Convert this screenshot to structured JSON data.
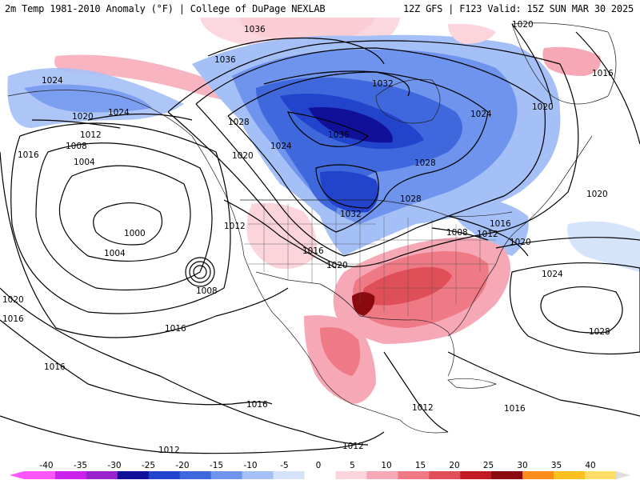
{
  "header": {
    "title_left": "2m Temp 1981-2010 Anomaly (°F) | College of DuPage NEXLAB",
    "title_right": "12Z GFS | F123 Valid: 15Z SUN MAR 30 2025"
  },
  "map": {
    "isobar_labels": [
      {
        "id": "a1",
        "text": "1036"
      },
      {
        "id": "a2",
        "text": "1020"
      },
      {
        "id": "a3",
        "text": "1024"
      },
      {
        "id": "a4",
        "text": "1036"
      },
      {
        "id": "a5",
        "text": "1032"
      },
      {
        "id": "a6",
        "text": "1016"
      },
      {
        "id": "a7",
        "text": "1020"
      },
      {
        "id": "a8",
        "text": "1024"
      },
      {
        "id": "a9",
        "text": "1020"
      },
      {
        "id": "a10",
        "text": "1028"
      },
      {
        "id": "a11",
        "text": "1036"
      },
      {
        "id": "a12",
        "text": "1024"
      },
      {
        "id": "a13",
        "text": "1012"
      },
      {
        "id": "a14",
        "text": "1016"
      },
      {
        "id": "a15",
        "text": "1008"
      },
      {
        "id": "a16",
        "text": "1020"
      },
      {
        "id": "a17",
        "text": "1028"
      },
      {
        "id": "a18",
        "text": "1004"
      },
      {
        "id": "a19",
        "text": "1024"
      },
      {
        "id": "a20",
        "text": "1020"
      },
      {
        "id": "a21",
        "text": "1028"
      },
      {
        "id": "a22",
        "text": "1032"
      },
      {
        "id": "a23",
        "text": "1012"
      },
      {
        "id": "a24",
        "text": "1000"
      },
      {
        "id": "a25",
        "text": "1016"
      },
      {
        "id": "a26",
        "text": "1016"
      },
      {
        "id": "a27",
        "text": "1008"
      },
      {
        "id": "a28",
        "text": "1012"
      },
      {
        "id": "a29",
        "text": "1020"
      },
      {
        "id": "a30",
        "text": "1020"
      },
      {
        "id": "a31",
        "text": "1004"
      },
      {
        "id": "a32",
        "text": "1008"
      },
      {
        "id": "a33",
        "text": "1024"
      },
      {
        "id": "a34",
        "text": "1020"
      },
      {
        "id": "a35",
        "text": "1016"
      },
      {
        "id": "a36",
        "text": "1016"
      },
      {
        "id": "a37",
        "text": "1028"
      },
      {
        "id": "a38",
        "text": "1016"
      },
      {
        "id": "a39",
        "text": "1016"
      },
      {
        "id": "a40",
        "text": "1012"
      },
      {
        "id": "a41",
        "text": "1016"
      },
      {
        "id": "a42",
        "text": "1012"
      },
      {
        "id": "a43",
        "text": "1012"
      }
    ]
  },
  "legend": {
    "ticks": [
      "-40",
      "-35",
      "-30",
      "-25",
      "-20",
      "-15",
      "-10",
      "-5",
      "0",
      "5",
      "10",
      "15",
      "20",
      "25",
      "30",
      "35",
      "40"
    ],
    "colors": [
      "#ff55ff",
      "#cc22ee",
      "#9922cc",
      "#101098",
      "#2244cc",
      "#3f68dd",
      "#6f94ee",
      "#a5c0f6",
      "#d6e4fb",
      "#ffffff",
      "#fbd4dc",
      "#f7a8b6",
      "#ef7a86",
      "#e04f58",
      "#c21a24",
      "#8a0a10",
      "#ff8c1a",
      "#ffc020",
      "#ffdd66"
    ]
  }
}
